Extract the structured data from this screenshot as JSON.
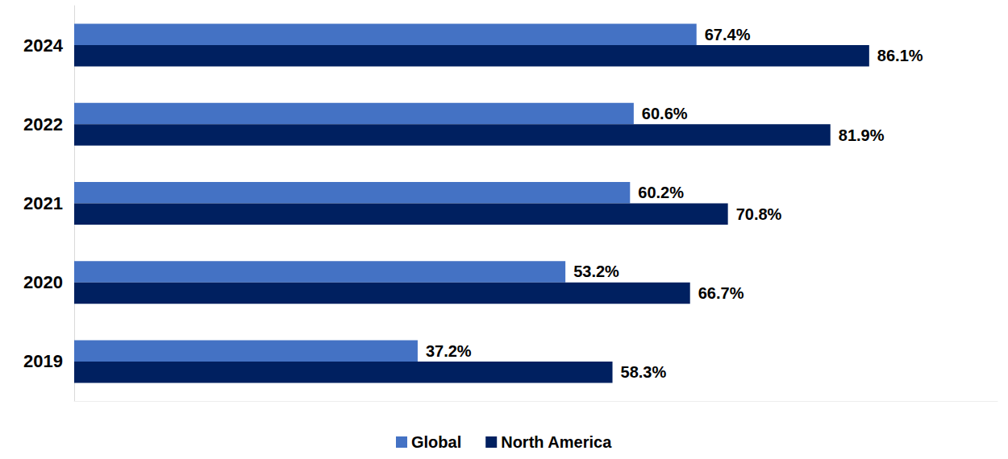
{
  "chart_data": {
    "type": "bar",
    "orientation": "horizontal",
    "categories": [
      "2019",
      "2020",
      "2021",
      "2022",
      "2024"
    ],
    "series": [
      {
        "name": "Global",
        "color": "#4472c4",
        "values": [
          37.2,
          53.2,
          60.2,
          60.6,
          67.4
        ],
        "value_labels": [
          "37.2%",
          "53.2%",
          "60.2%",
          "60.6%",
          "67.4%"
        ]
      },
      {
        "name": "North America",
        "color": "#002060",
        "values": [
          58.3,
          66.7,
          70.8,
          81.9,
          86.1
        ],
        "value_labels": [
          "58.3%",
          "66.7%",
          "70.8%",
          "81.9%",
          "86.1%"
        ]
      }
    ],
    "xlim": [
      0,
      100
    ],
    "data_labels": true,
    "tick_labels": "y",
    "grid": false,
    "legend": "bottom"
  }
}
